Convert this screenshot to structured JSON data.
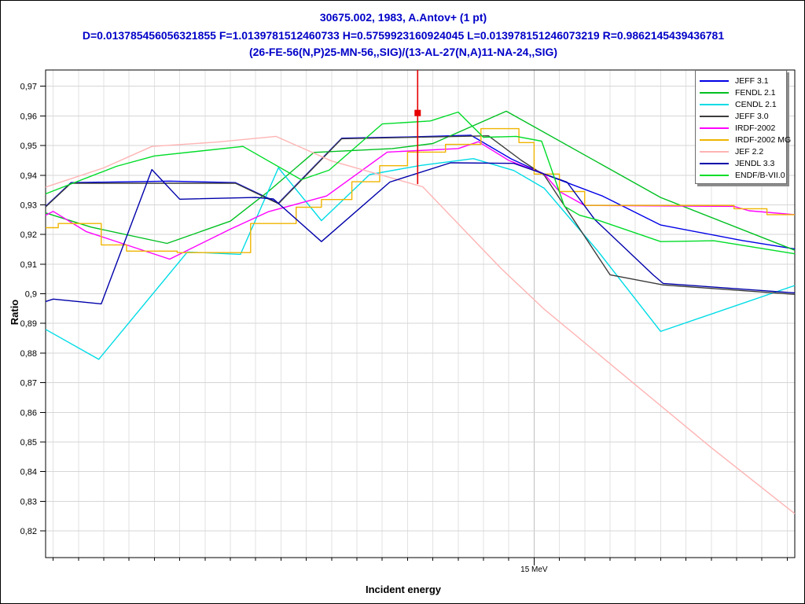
{
  "title_color": "#0000C8",
  "chart_data": {
    "type": "line",
    "title_lines": [
      "30675.002, 1983, A.Antov+ (1 pt)",
      "D=0.013785456056321855 F=1.0139781512460733 H=0.5759923160924045 L=0.013978151246073219 R=0.9862145439436781",
      "(26-FE-56(N,P)25-MN-56,,SIG)/(13-AL-27(N,A)11-NA-24,,SIG)"
    ],
    "xlabel": "Incident energy",
    "ylabel": "Ratio",
    "x_unit": "MeV",
    "x_min": 13.07,
    "x_max": 16.03,
    "y_min": 0.811,
    "y_max": 0.9755,
    "grid": true,
    "legend_position": "top-right",
    "x_grid_start": 13.1,
    "x_grid_step": 0.1,
    "x_grid_count": 30,
    "x_major_tick": {
      "value": 15.0,
      "label": "15 MeV"
    },
    "y_ticks": [
      {
        "v": 0.97,
        "label": "0,97"
      },
      {
        "v": 0.96,
        "label": "0,96"
      },
      {
        "v": 0.95,
        "label": "0,95"
      },
      {
        "v": 0.94,
        "label": "0,94"
      },
      {
        "v": 0.93,
        "label": "0,93"
      },
      {
        "v": 0.92,
        "label": "0,92"
      },
      {
        "v": 0.91,
        "label": "0,91"
      },
      {
        "v": 0.9,
        "label": "0,9"
      },
      {
        "v": 0.89,
        "label": "0,89"
      },
      {
        "v": 0.88,
        "label": "0,88"
      },
      {
        "v": 0.87,
        "label": "0,87"
      },
      {
        "v": 0.86,
        "label": "0,86"
      },
      {
        "v": 0.85,
        "label": "0,85"
      },
      {
        "v": 0.84,
        "label": "0,84"
      },
      {
        "v": 0.83,
        "label": "0,83"
      },
      {
        "v": 0.82,
        "label": "0,82"
      }
    ],
    "experiment_point": {
      "x": 14.54,
      "value": 0.961,
      "err_low": 0.937,
      "err_high": 0.9755,
      "color": "#E60000",
      "marker": "square"
    },
    "series": [
      {
        "name": "JEFF 3.1",
        "color": "#0000E6",
        "style": "line",
        "points": [
          [
            13.07,
            0.9295
          ],
          [
            13.17,
            0.9375
          ],
          [
            13.56,
            0.938
          ],
          [
            13.82,
            0.9375
          ],
          [
            13.99,
            0.9306
          ],
          [
            14.24,
            0.9525
          ],
          [
            14.5,
            0.9529
          ],
          [
            14.75,
            0.9535
          ],
          [
            14.91,
            0.9455
          ],
          [
            15.04,
            0.9404
          ],
          [
            15.27,
            0.933
          ],
          [
            15.5,
            0.9232
          ],
          [
            15.82,
            0.918
          ],
          [
            16.03,
            0.9151
          ]
        ]
      },
      {
        "name": "FENDL 2.1",
        "color": "#00C020",
        "style": "line",
        "points": [
          [
            13.07,
            0.9273
          ],
          [
            13.25,
            0.9225
          ],
          [
            13.55,
            0.917
          ],
          [
            13.8,
            0.9245
          ],
          [
            13.95,
            0.9345
          ],
          [
            14.13,
            0.9477
          ],
          [
            14.44,
            0.949
          ],
          [
            14.6,
            0.9507
          ],
          [
            14.89,
            0.9616
          ],
          [
            15.5,
            0.9325
          ],
          [
            16.03,
            0.9147
          ]
        ]
      },
      {
        "name": "CENDL 2.1",
        "color": "#00DCE6",
        "style": "line",
        "points": [
          [
            13.07,
            0.888
          ],
          [
            13.28,
            0.8779
          ],
          [
            13.63,
            0.9141
          ],
          [
            13.84,
            0.9133
          ],
          [
            13.99,
            0.9425
          ],
          [
            14.16,
            0.9247
          ],
          [
            14.35,
            0.9402
          ],
          [
            14.55,
            0.9433
          ],
          [
            14.76,
            0.9456
          ],
          [
            14.92,
            0.9416
          ],
          [
            15.04,
            0.9356
          ],
          [
            15.12,
            0.9276
          ],
          [
            15.25,
            0.9146
          ],
          [
            15.5,
            0.8873
          ],
          [
            16.03,
            0.9028
          ]
        ]
      },
      {
        "name": "JEFF 3.0",
        "color": "#3C3C3C",
        "style": "line",
        "points": [
          [
            13.07,
            0.9293
          ],
          [
            13.17,
            0.9373
          ],
          [
            13.82,
            0.9373
          ],
          [
            13.99,
            0.9304
          ],
          [
            14.24,
            0.9523
          ],
          [
            14.82,
            0.9533
          ],
          [
            14.95,
            0.945
          ],
          [
            15.04,
            0.94
          ],
          [
            15.3,
            0.9064
          ],
          [
            15.51,
            0.903
          ],
          [
            16.03,
            0.8998
          ]
        ]
      },
      {
        "name": "IRDF-2002",
        "color": "#FF00FF",
        "style": "line",
        "points": [
          [
            13.07,
            0.9265
          ],
          [
            13.1,
            0.9278
          ],
          [
            13.23,
            0.921
          ],
          [
            13.56,
            0.9117
          ],
          [
            13.8,
            0.9218
          ],
          [
            13.95,
            0.9277
          ],
          [
            14.18,
            0.933
          ],
          [
            14.42,
            0.9478
          ],
          [
            14.7,
            0.949
          ],
          [
            14.78,
            0.9513
          ],
          [
            14.9,
            0.945
          ],
          [
            15.04,
            0.9404
          ],
          [
            15.1,
            0.9345
          ],
          [
            15.2,
            0.9298
          ],
          [
            15.79,
            0.9295
          ],
          [
            15.85,
            0.928
          ],
          [
            16.03,
            0.9267
          ]
        ]
      },
      {
        "name": "IRDF-2002 MG",
        "color": "#F0B400",
        "style": "step",
        "points": [
          [
            13.07,
            0.9223
          ],
          [
            13.12,
            0.9237
          ],
          [
            13.29,
            0.9165
          ],
          [
            13.39,
            0.9144
          ],
          [
            13.59,
            0.9139
          ],
          [
            13.88,
            0.9237
          ],
          [
            14.06,
            0.9292
          ],
          [
            14.16,
            0.9318
          ],
          [
            14.28,
            0.9378
          ],
          [
            14.39,
            0.9432
          ],
          [
            14.5,
            0.9478
          ],
          [
            14.65,
            0.9504
          ],
          [
            14.79,
            0.9557
          ],
          [
            14.94,
            0.951
          ],
          [
            15.0,
            0.9404
          ],
          [
            15.1,
            0.9345
          ],
          [
            15.2,
            0.9298
          ],
          [
            15.79,
            0.9287
          ],
          [
            15.92,
            0.9267
          ],
          [
            16.03,
            0.9267
          ]
        ]
      },
      {
        "name": "JEF 2.2",
        "color": "#FFB4B4",
        "style": "line",
        "points": [
          [
            13.07,
            0.936
          ],
          [
            13.3,
            0.9425
          ],
          [
            13.49,
            0.9497
          ],
          [
            13.75,
            0.9512
          ],
          [
            13.98,
            0.9531
          ],
          [
            14.2,
            0.9448
          ],
          [
            14.56,
            0.9361
          ],
          [
            14.87,
            0.9085
          ],
          [
            15.04,
            0.8948
          ],
          [
            15.7,
            0.8481
          ],
          [
            16.03,
            0.8258
          ]
        ]
      },
      {
        "name": "JENDL 3.3",
        "color": "#0000AA",
        "style": "line",
        "points": [
          [
            13.07,
            0.8974
          ],
          [
            13.1,
            0.8982
          ],
          [
            13.29,
            0.8966
          ],
          [
            13.49,
            0.9419
          ],
          [
            13.6,
            0.9319
          ],
          [
            13.9,
            0.9325
          ],
          [
            13.97,
            0.932
          ],
          [
            14.16,
            0.9176
          ],
          [
            14.43,
            0.9377
          ],
          [
            14.67,
            0.9442
          ],
          [
            14.92,
            0.944
          ],
          [
            15.13,
            0.9377
          ],
          [
            15.24,
            0.925
          ],
          [
            15.47,
            0.9064
          ],
          [
            15.51,
            0.9035
          ],
          [
            16.03,
            0.9003
          ]
        ]
      },
      {
        "name": "ENDF/B-VII.0",
        "color": "#00DC28",
        "style": "line",
        "points": [
          [
            13.07,
            0.9337
          ],
          [
            13.35,
            0.943
          ],
          [
            13.5,
            0.9465
          ],
          [
            13.85,
            0.9497
          ],
          [
            14.08,
            0.9385
          ],
          [
            14.19,
            0.9417
          ],
          [
            14.4,
            0.9573
          ],
          [
            14.59,
            0.9583
          ],
          [
            14.7,
            0.9613
          ],
          [
            14.8,
            0.9528
          ],
          [
            14.93,
            0.9531
          ],
          [
            15.03,
            0.9515
          ],
          [
            15.12,
            0.9295
          ],
          [
            15.18,
            0.9265
          ],
          [
            15.25,
            0.9249
          ],
          [
            15.5,
            0.9176
          ],
          [
            15.71,
            0.9179
          ],
          [
            16.03,
            0.9135
          ]
        ]
      }
    ]
  }
}
